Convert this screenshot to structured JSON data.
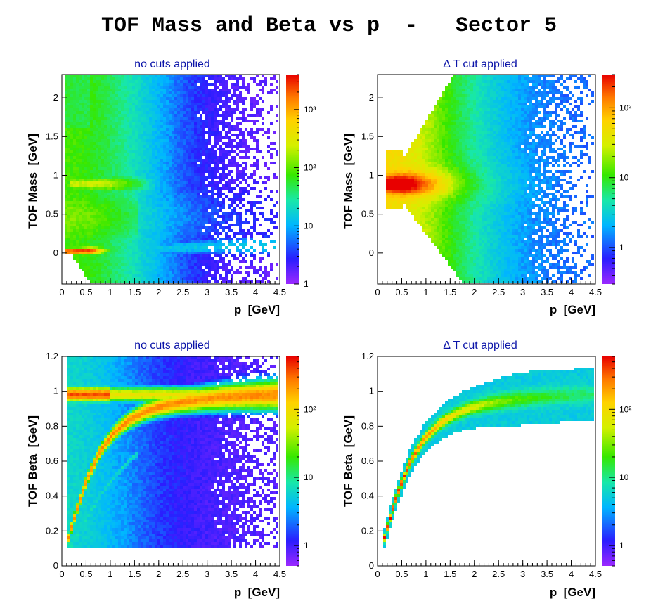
{
  "title": "TOF Mass and Beta vs p  -   Sector 5",
  "colors": {
    "panel_title": "#0b14a8",
    "frame": "#000000",
    "palette": [
      "#9b28ff",
      "#2a1dff",
      "#00b6ff",
      "#18e8a8",
      "#36e800",
      "#d4f000",
      "#ffd200",
      "#ff7a00",
      "#e80000"
    ]
  },
  "chart_data": [
    {
      "id": "mass_all",
      "type": "heatmap",
      "title": "no cuts applied",
      "xlabel": "p  [GeV]",
      "ylabel": "TOF Mass  [GeV]",
      "xlim": [
        0,
        4.5
      ],
      "ylim": [
        -0.4,
        2.3
      ],
      "xticks": [
        0,
        0.5,
        1,
        1.5,
        2,
        2.5,
        3,
        3.5,
        4,
        4.5
      ],
      "xtick_labels": [
        "0",
        "0.5",
        "1",
        "1.5",
        "2",
        "2.5",
        "3",
        "3.5",
        "4",
        "4.5"
      ],
      "yticks": [
        0,
        0.5,
        1,
        1.5,
        2
      ],
      "ytick_labels": [
        "0",
        "0.5",
        "1",
        "1.5",
        "2"
      ],
      "z_log": true,
      "z_range": [
        1,
        4000
      ],
      "z_ticks": [
        1,
        10,
        100,
        1000
      ],
      "z_tick_labels": [
        "1",
        "10",
        "10²",
        "10³"
      ],
      "features": [
        {
          "name": "pion band",
          "p_range": [
            0.15,
            1.0
          ],
          "mass": 0.0,
          "peak_counts": 4000
        },
        {
          "name": "proton band",
          "p_range": [
            0.2,
            2.2
          ],
          "mass": 0.9,
          "peak_counts": 100
        },
        {
          "name": "background",
          "p_range": [
            0.1,
            4.5
          ],
          "mass_range": [
            -0.4,
            2.3
          ],
          "counts": 1
        }
      ]
    },
    {
      "id": "mass_cut",
      "type": "heatmap",
      "title": "Δ T cut applied",
      "xlabel": "p  [GeV]",
      "ylabel": "TOF Mass  [GeV]",
      "xlim": [
        0,
        4.5
      ],
      "ylim": [
        -0.4,
        2.3
      ],
      "xticks": [
        0,
        0.5,
        1,
        1.5,
        2,
        2.5,
        3,
        3.5,
        4,
        4.5
      ],
      "xtick_labels": [
        "0",
        "0.5",
        "1",
        "1.5",
        "2",
        "2.5",
        "3",
        "3.5",
        "4",
        "4.5"
      ],
      "yticks": [
        0,
        0.5,
        1,
        1.5,
        2
      ],
      "ytick_labels": [
        "0",
        "0.5",
        "1",
        "1.5",
        "2"
      ],
      "z_log": true,
      "z_range": [
        0.3,
        300
      ],
      "z_ticks": [
        1,
        10,
        100
      ],
      "z_tick_labels": [
        "1",
        "10",
        "10²"
      ],
      "features": [
        {
          "name": "proton band",
          "p_range": [
            0.15,
            4.5
          ],
          "mass": 0.88,
          "peak_counts": 300
        }
      ]
    },
    {
      "id": "beta_all",
      "type": "heatmap",
      "title": "no cuts applied",
      "xlabel": "p  [GeV]",
      "ylabel": "TOF Beta  [GeV]",
      "xlim": [
        0,
        4.5
      ],
      "ylim": [
        0,
        1.2
      ],
      "xticks": [
        0,
        0.5,
        1,
        1.5,
        2,
        2.5,
        3,
        3.5,
        4,
        4.5
      ],
      "xtick_labels": [
        "0",
        "0.5",
        "1",
        "1.5",
        "2",
        "2.5",
        "3",
        "3.5",
        "4",
        "4.5"
      ],
      "yticks": [
        0,
        0.2,
        0.4,
        0.6,
        0.8,
        1,
        1.2
      ],
      "ytick_labels": [
        "0",
        "0.2",
        "0.4",
        "0.6",
        "0.8",
        "1",
        "1.2"
      ],
      "z_log": true,
      "z_range": [
        0.5,
        600
      ],
      "z_ticks": [
        1,
        10,
        100
      ],
      "z_tick_labels": [
        "1",
        "10",
        "10²"
      ],
      "features": [
        {
          "name": "pion band",
          "p_range": [
            0.15,
            4.5
          ],
          "beta": 0.98,
          "peak_counts": 600
        },
        {
          "name": "proton band",
          "p_range": [
            0.2,
            4.5
          ],
          "mass": 0.938,
          "peak_counts": 400
        },
        {
          "name": "deuteron band",
          "p_range": [
            0.3,
            1.5
          ],
          "mass": 1.876,
          "peak_counts": 20
        }
      ]
    },
    {
      "id": "beta_cut",
      "type": "heatmap",
      "title": "Δ T cut applied",
      "xlabel": "p  [GeV]",
      "ylabel": "TOF Beta  [GeV]",
      "xlim": [
        0,
        4.5
      ],
      "ylim": [
        0,
        1.2
      ],
      "xticks": [
        0,
        0.5,
        1,
        1.5,
        2,
        2.5,
        3,
        3.5,
        4,
        4.5
      ],
      "xtick_labels": [
        "0",
        "0.5",
        "1",
        "1.5",
        "2",
        "2.5",
        "3",
        "3.5",
        "4",
        "4.5"
      ],
      "yticks": [
        0,
        0.2,
        0.4,
        0.6,
        0.8,
        1,
        1.2
      ],
      "ytick_labels": [
        "0",
        "0.2",
        "0.4",
        "0.6",
        "0.8",
        "1",
        "1.2"
      ],
      "z_log": true,
      "z_range": [
        0.5,
        600
      ],
      "z_ticks": [
        1,
        10,
        100
      ],
      "z_tick_labels": [
        "1",
        "10",
        "10²"
      ],
      "features": [
        {
          "name": "proton band",
          "p_range": [
            0.15,
            4.5
          ],
          "mass": 0.938,
          "peak_counts": 600
        }
      ]
    }
  ]
}
